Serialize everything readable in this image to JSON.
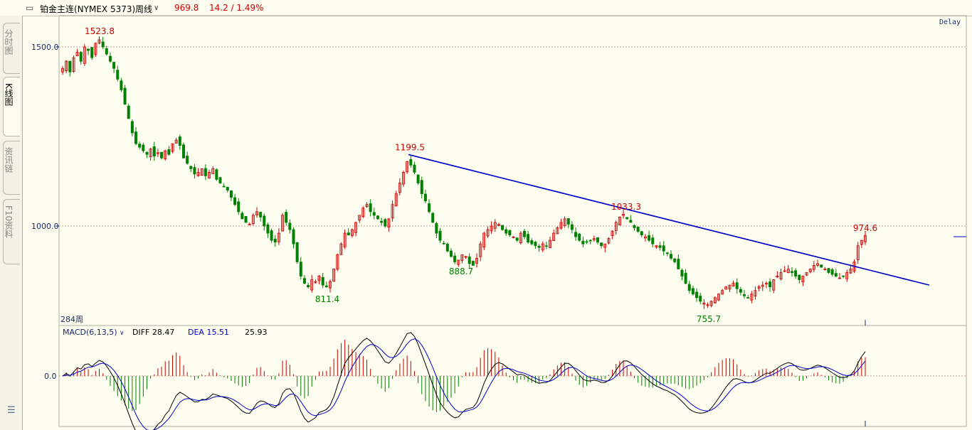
{
  "header": {
    "icon": "link-icon",
    "symbol": "铂金主连(NYMEX 5373)",
    "period": "周线",
    "price": "969.8",
    "change": "14.2 / 1.49%",
    "delay": "Delay"
  },
  "sidebar": {
    "tabs": [
      {
        "label": "分时图",
        "active": false
      },
      {
        "label": "K线图",
        "active": true
      },
      {
        "label": "资讯链",
        "active": false
      },
      {
        "label": "F10资料",
        "active": false
      }
    ],
    "menu_icon": "list-icon"
  },
  "colors": {
    "up": "#cc0000",
    "down": "#008000",
    "trendline": "#0000cc",
    "background": "#fdfdf0",
    "grid": "#d0a0a0"
  },
  "chart_data": {
    "type": "candlestick",
    "price_panel": {
      "y_ticks": [
        "1500.0",
        "1000.0"
      ],
      "y_tick_values": [
        1500,
        1000
      ],
      "period_count_label": "284周",
      "annotations": [
        {
          "text": "1523.8",
          "kind": "high",
          "value": 1523.8
        },
        {
          "text": "811.4",
          "kind": "low",
          "value": 811.4
        },
        {
          "text": "1199.5",
          "kind": "high",
          "value": 1199.5
        },
        {
          "text": "888.7",
          "kind": "low",
          "value": 888.7
        },
        {
          "text": "1033.3",
          "kind": "high",
          "value": 1033.3
        },
        {
          "text": "755.7",
          "kind": "low",
          "value": 755.7
        },
        {
          "text": "974.6",
          "kind": "high",
          "value": 974.6
        }
      ],
      "trendline": {
        "from_value": 1199.5,
        "to_value": 835
      },
      "closes": [
        1440,
        1460,
        1430,
        1470,
        1485,
        1460,
        1500,
        1490,
        1470,
        1510,
        1520,
        1500,
        1480,
        1460,
        1440,
        1410,
        1380,
        1340,
        1300,
        1260,
        1230,
        1220,
        1210,
        1200,
        1215,
        1195,
        1205,
        1190,
        1210,
        1200,
        1230,
        1240,
        1225,
        1190,
        1175,
        1160,
        1145,
        1150,
        1160,
        1140,
        1150,
        1160,
        1130,
        1120,
        1110,
        1100,
        1080,
        1060,
        1040,
        1020,
        1010,
        1005,
        1030,
        1040,
        1025,
        1000,
        980,
        960,
        955,
        980,
        1030,
        1010,
        990,
        950,
        900,
        860,
        840,
        830,
        850,
        845,
        860,
        835,
        830,
        845,
        880,
        920,
        950,
        980,
        975,
        990,
        1010,
        1030,
        1050,
        1060,
        1040,
        1030,
        1020,
        1010,
        1000,
        1020,
        1060,
        1090,
        1120,
        1150,
        1180,
        1170,
        1150,
        1120,
        1090,
        1070,
        1040,
        1010,
        980,
        960,
        950,
        930,
        915,
        900,
        905,
        920,
        915,
        895,
        890,
        910,
        950,
        980,
        990,
        1000,
        1010,
        1005,
        990,
        980,
        975,
        970,
        960,
        980,
        970,
        955,
        950,
        945,
        940,
        950,
        945,
        960,
        980,
        995,
        1010,
        1020,
        1005,
        990,
        970,
        960,
        950,
        955,
        960,
        965,
        955,
        945,
        950,
        965,
        985,
        1010,
        1025,
        1033,
        1020,
        1010,
        995,
        985,
        975,
        970,
        960,
        950,
        945,
        940,
        930,
        925,
        910,
        900,
        880,
        860,
        840,
        820,
        810,
        800,
        790,
        785,
        780,
        790,
        800,
        810,
        820,
        830,
        835,
        840,
        825,
        815,
        805,
        800,
        810,
        820,
        830,
        835,
        840,
        830,
        850,
        860,
        870,
        875,
        880,
        870,
        860,
        850,
        860,
        870,
        880,
        890,
        895,
        885,
        880,
        870,
        865,
        860,
        855,
        860,
        870,
        880,
        900,
        945,
        960,
        974
      ]
    },
    "macd_panel": {
      "title": "MACD(6,13,5)",
      "diff_label": "DIFF 28.47",
      "dea_label": "DEA 15.51",
      "macd_value": "25.93",
      "zero_tick": "0.0",
      "diff_last": 28.47,
      "dea_last": 15.51,
      "hist_last": 25.93
    }
  }
}
